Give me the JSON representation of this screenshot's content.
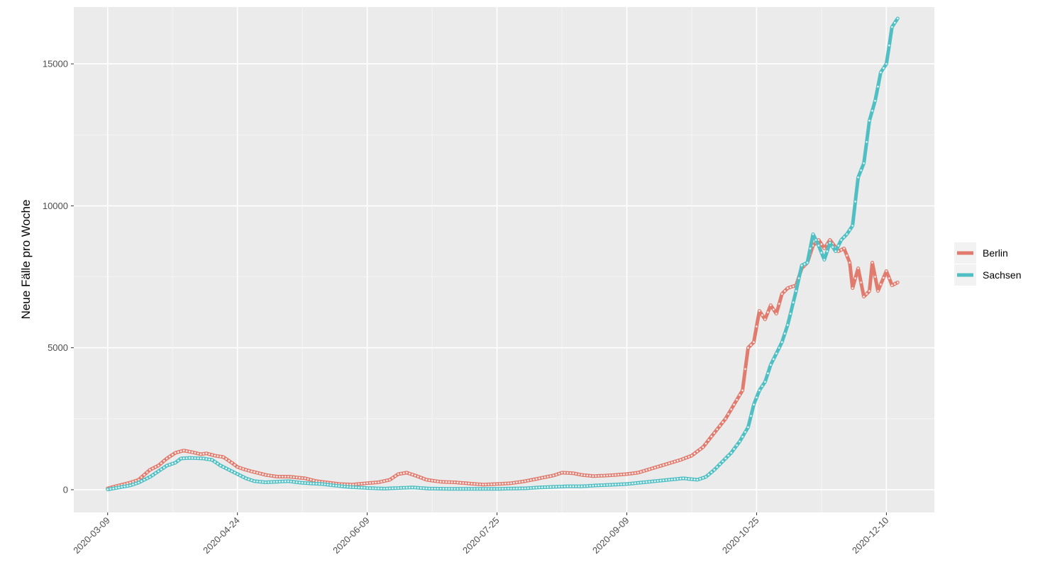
{
  "chart_data": {
    "type": "line",
    "title": "",
    "xlabel": "",
    "ylabel": "Neue Fälle pro Woche",
    "x_start": "2020-03-09",
    "x_end": "2020-12-14",
    "xlim": [
      "2020-02-26",
      "2020-12-27"
    ],
    "ylim": [
      -800,
      17000
    ],
    "x_ticks": [
      "2020-03-09",
      "2020-04-24",
      "2020-06-09",
      "2020-07-25",
      "2020-09-09",
      "2020-10-25",
      "2020-12-10"
    ],
    "y_ticks": [
      0,
      5000,
      10000,
      15000
    ],
    "grid": true,
    "legend_position": "right",
    "series": [
      {
        "name": "Berlin",
        "color": "#E07B6E",
        "points": [
          [
            "2020-03-09",
            50
          ],
          [
            "2020-03-13",
            150
          ],
          [
            "2020-03-17",
            250
          ],
          [
            "2020-03-20",
            350
          ],
          [
            "2020-03-24",
            700
          ],
          [
            "2020-03-27",
            850
          ],
          [
            "2020-03-30",
            1100
          ],
          [
            "2020-04-02",
            1300
          ],
          [
            "2020-04-05",
            1380
          ],
          [
            "2020-04-09",
            1300
          ],
          [
            "2020-04-11",
            1250
          ],
          [
            "2020-04-13",
            1280
          ],
          [
            "2020-04-16",
            1200
          ],
          [
            "2020-04-19",
            1150
          ],
          [
            "2020-04-22",
            950
          ],
          [
            "2020-04-24",
            800
          ],
          [
            "2020-04-27",
            700
          ],
          [
            "2020-04-30",
            620
          ],
          [
            "2020-05-04",
            520
          ],
          [
            "2020-05-08",
            460
          ],
          [
            "2020-05-12",
            460
          ],
          [
            "2020-05-15",
            430
          ],
          [
            "2020-05-18",
            400
          ],
          [
            "2020-05-22",
            300
          ],
          [
            "2020-05-26",
            250
          ],
          [
            "2020-05-30",
            200
          ],
          [
            "2020-06-04",
            180
          ],
          [
            "2020-06-09",
            230
          ],
          [
            "2020-06-13",
            260
          ],
          [
            "2020-06-17",
            350
          ],
          [
            "2020-06-20",
            550
          ],
          [
            "2020-06-23",
            600
          ],
          [
            "2020-06-26",
            500
          ],
          [
            "2020-06-30",
            350
          ],
          [
            "2020-07-05",
            280
          ],
          [
            "2020-07-10",
            260
          ],
          [
            "2020-07-15",
            220
          ],
          [
            "2020-07-20",
            180
          ],
          [
            "2020-07-25",
            200
          ],
          [
            "2020-07-30",
            230
          ],
          [
            "2020-08-04",
            300
          ],
          [
            "2020-08-09",
            400
          ],
          [
            "2020-08-14",
            500
          ],
          [
            "2020-08-17",
            600
          ],
          [
            "2020-08-21",
            580
          ],
          [
            "2020-08-24",
            520
          ],
          [
            "2020-08-28",
            480
          ],
          [
            "2020-09-02",
            500
          ],
          [
            "2020-09-09",
            550
          ],
          [
            "2020-09-13",
            600
          ],
          [
            "2020-09-18",
            750
          ],
          [
            "2020-09-23",
            900
          ],
          [
            "2020-09-28",
            1050
          ],
          [
            "2020-10-02",
            1200
          ],
          [
            "2020-10-06",
            1500
          ],
          [
            "2020-10-10",
            2000
          ],
          [
            "2020-10-14",
            2500
          ],
          [
            "2020-10-17",
            3000
          ],
          [
            "2020-10-20",
            3500
          ],
          [
            "2020-10-22",
            5000
          ],
          [
            "2020-10-24",
            5200
          ],
          [
            "2020-10-26",
            6300
          ],
          [
            "2020-10-28",
            6000
          ],
          [
            "2020-10-30",
            6500
          ],
          [
            "2020-11-01",
            6200
          ],
          [
            "2020-11-03",
            6900
          ],
          [
            "2020-11-05",
            7100
          ],
          [
            "2020-11-08",
            7200
          ],
          [
            "2020-11-10",
            7800
          ],
          [
            "2020-11-12",
            8000
          ],
          [
            "2020-11-14",
            8600
          ],
          [
            "2020-11-16",
            8800
          ],
          [
            "2020-11-18",
            8500
          ],
          [
            "2020-11-20",
            8800
          ],
          [
            "2020-11-23",
            8400
          ],
          [
            "2020-11-25",
            8500
          ],
          [
            "2020-11-27",
            8000
          ],
          [
            "2020-11-28",
            7100
          ],
          [
            "2020-11-30",
            7800
          ],
          [
            "2020-12-02",
            6800
          ],
          [
            "2020-12-04",
            7000
          ],
          [
            "2020-12-05",
            8000
          ],
          [
            "2020-12-07",
            7000
          ],
          [
            "2020-12-10",
            7700
          ],
          [
            "2020-12-12",
            7200
          ],
          [
            "2020-12-14",
            7300
          ]
        ]
      },
      {
        "name": "Sachsen",
        "color": "#4FBFC4",
        "points": [
          [
            "2020-03-09",
            10
          ],
          [
            "2020-03-13",
            80
          ],
          [
            "2020-03-17",
            150
          ],
          [
            "2020-03-20",
            250
          ],
          [
            "2020-03-24",
            450
          ],
          [
            "2020-03-27",
            650
          ],
          [
            "2020-03-30",
            850
          ],
          [
            "2020-04-02",
            950
          ],
          [
            "2020-04-04",
            1100
          ],
          [
            "2020-04-07",
            1120
          ],
          [
            "2020-04-12",
            1100
          ],
          [
            "2020-04-15",
            1050
          ],
          [
            "2020-04-18",
            850
          ],
          [
            "2020-04-21",
            700
          ],
          [
            "2020-04-24",
            550
          ],
          [
            "2020-04-27",
            400
          ],
          [
            "2020-04-30",
            300
          ],
          [
            "2020-05-04",
            260
          ],
          [
            "2020-05-08",
            280
          ],
          [
            "2020-05-12",
            300
          ],
          [
            "2020-05-16",
            250
          ],
          [
            "2020-05-20",
            220
          ],
          [
            "2020-05-24",
            200
          ],
          [
            "2020-05-28",
            150
          ],
          [
            "2020-06-02",
            100
          ],
          [
            "2020-06-09",
            60
          ],
          [
            "2020-06-15",
            40
          ],
          [
            "2020-06-20",
            60
          ],
          [
            "2020-06-25",
            80
          ],
          [
            "2020-07-01",
            40
          ],
          [
            "2020-07-10",
            30
          ],
          [
            "2020-07-25",
            30
          ],
          [
            "2020-08-04",
            50
          ],
          [
            "2020-08-09",
            80
          ],
          [
            "2020-08-14",
            100
          ],
          [
            "2020-08-19",
            120
          ],
          [
            "2020-08-24",
            120
          ],
          [
            "2020-08-29",
            150
          ],
          [
            "2020-09-03",
            170
          ],
          [
            "2020-09-09",
            200
          ],
          [
            "2020-09-14",
            250
          ],
          [
            "2020-09-19",
            300
          ],
          [
            "2020-09-24",
            350
          ],
          [
            "2020-09-29",
            400
          ],
          [
            "2020-10-04",
            350
          ],
          [
            "2020-10-07",
            450
          ],
          [
            "2020-10-10",
            700
          ],
          [
            "2020-10-13",
            1000
          ],
          [
            "2020-10-16",
            1300
          ],
          [
            "2020-10-19",
            1700
          ],
          [
            "2020-10-22",
            2200
          ],
          [
            "2020-10-24",
            3000
          ],
          [
            "2020-10-26",
            3500
          ],
          [
            "2020-10-28",
            3800
          ],
          [
            "2020-10-30",
            4400
          ],
          [
            "2020-11-01",
            4800
          ],
          [
            "2020-11-03",
            5200
          ],
          [
            "2020-11-05",
            5800
          ],
          [
            "2020-11-08",
            7000
          ],
          [
            "2020-11-10",
            7900
          ],
          [
            "2020-11-12",
            8000
          ],
          [
            "2020-11-14",
            9000
          ],
          [
            "2020-11-16",
            8600
          ],
          [
            "2020-11-18",
            8100
          ],
          [
            "2020-11-20",
            8700
          ],
          [
            "2020-11-22",
            8400
          ],
          [
            "2020-11-24",
            8800
          ],
          [
            "2020-11-26",
            9000
          ],
          [
            "2020-11-28",
            9300
          ],
          [
            "2020-11-30",
            11000
          ],
          [
            "2020-12-02",
            11500
          ],
          [
            "2020-12-04",
            13000
          ],
          [
            "2020-12-06",
            13700
          ],
          [
            "2020-12-08",
            14700
          ],
          [
            "2020-12-10",
            15000
          ],
          [
            "2020-12-12",
            16300
          ],
          [
            "2020-12-14",
            16600
          ]
        ]
      }
    ]
  }
}
